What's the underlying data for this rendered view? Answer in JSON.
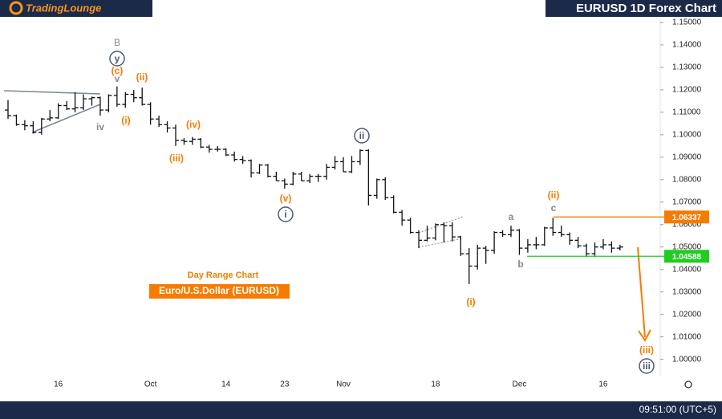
{
  "header": {
    "logo": "TradingLounge",
    "title": "EURUSD 1D Forex Chart",
    "time": "09:51:00 (UTC+5)"
  },
  "chart_data": {
    "type": "ohlc",
    "color": "#111111",
    "subtitle": "Day Range Chart",
    "instrument": "Euro/U.S.Dollar (EURUSD)",
    "categories": [
      null,
      null,
      null,
      null,
      null,
      null,
      "16",
      null,
      null,
      null,
      null,
      null,
      null,
      null,
      null,
      null,
      null,
      "Oct",
      null,
      null,
      null,
      null,
      null,
      null,
      null,
      null,
      "14",
      null,
      null,
      null,
      null,
      null,
      null,
      "23",
      null,
      null,
      null,
      null,
      null,
      null,
      "Nov",
      null,
      null,
      null,
      null,
      null,
      null,
      null,
      null,
      null,
      null,
      "18",
      null,
      null,
      null,
      null,
      null,
      null,
      null,
      null,
      null,
      "Dec",
      null,
      null,
      null,
      null,
      null,
      null,
      null,
      null,
      null,
      "16",
      null,
      null
    ],
    "open": [
      1.111,
      1.1085,
      1.1045,
      1.104,
      1.101,
      1.107,
      1.1075,
      1.113,
      1.1115,
      1.112,
      1.116,
      1.1165,
      1.111,
      1.1175,
      1.1135,
      1.118,
      1.1165,
      1.1135,
      1.107,
      1.1045,
      1.103,
      1.0975,
      1.097,
      1.098,
      1.0945,
      1.0935,
      1.0935,
      1.091,
      1.089,
      1.0885,
      1.083,
      1.0865,
      1.0815,
      1.0795,
      1.078,
      1.0825,
      1.0795,
      1.0815,
      1.0815,
      1.0855,
      1.088,
      1.0835,
      1.088,
      1.093,
      1.073,
      1.08,
      1.072,
      1.0655,
      1.062,
      1.0565,
      1.053,
      1.054,
      1.06,
      1.0595,
      1.0545,
      1.047,
      1.0415,
      1.0495,
      1.0485,
      1.0565,
      1.0555,
      1.0575,
      1.0495,
      1.051,
      1.051,
      1.0585,
      1.0565,
      1.0555,
      1.053,
      1.0505,
      1.047,
      1.05,
      1.051,
      1.0495
    ],
    "high": [
      1.1155,
      1.109,
      1.1065,
      1.106,
      1.1075,
      1.111,
      1.114,
      1.115,
      1.119,
      1.118,
      1.117,
      1.117,
      1.118,
      1.1215,
      1.119,
      1.12,
      1.121,
      1.1145,
      1.1085,
      1.106,
      1.1045,
      1.0985,
      1.099,
      1.0985,
      1.0955,
      1.095,
      1.094,
      1.0925,
      1.0905,
      1.089,
      1.087,
      1.087,
      1.0835,
      1.0805,
      1.0835,
      1.0835,
      1.0825,
      1.0825,
      1.087,
      1.0905,
      1.09,
      1.0905,
      1.0935,
      1.0935,
      1.0805,
      1.081,
      1.073,
      1.0665,
      1.063,
      1.0575,
      1.0595,
      1.0605,
      1.061,
      1.061,
      1.055,
      1.0495,
      1.051,
      1.0505,
      1.057,
      1.0575,
      1.0595,
      1.058,
      1.0535,
      1.0545,
      1.059,
      1.063,
      1.0595,
      1.0565,
      1.0545,
      1.0515,
      1.052,
      1.0535,
      1.0525,
      1.051
    ],
    "low": [
      1.107,
      1.104,
      1.102,
      1.1005,
      1.1,
      1.106,
      1.107,
      1.111,
      1.11,
      1.111,
      1.113,
      1.1085,
      1.11,
      1.1125,
      1.112,
      1.1145,
      1.113,
      1.1045,
      1.1035,
      1.101,
      1.095,
      1.0955,
      1.0955,
      1.094,
      1.092,
      1.0925,
      1.0905,
      1.088,
      1.087,
      1.081,
      1.0825,
      1.081,
      1.0795,
      1.076,
      1.0775,
      1.0795,
      1.0785,
      1.079,
      1.08,
      1.0845,
      1.0835,
      1.083,
      1.0865,
      1.0685,
      1.0715,
      1.071,
      1.065,
      1.0595,
      1.056,
      1.0495,
      1.0525,
      1.053,
      1.052,
      1.0525,
      1.046,
      1.0335,
      1.04,
      1.0425,
      1.047,
      1.0545,
      1.0545,
      1.0465,
      1.0475,
      1.049,
      1.0505,
      1.055,
      1.0545,
      1.051,
      1.0495,
      1.0455,
      1.0455,
      1.049,
      1.0475,
      1.0485
    ],
    "close": [
      1.1085,
      1.1045,
      1.104,
      1.101,
      1.107,
      1.1075,
      1.113,
      1.1115,
      1.112,
      1.116,
      1.1165,
      1.111,
      1.1175,
      1.1135,
      1.118,
      1.1165,
      1.1135,
      1.107,
      1.1045,
      1.103,
      1.0975,
      1.097,
      1.098,
      1.0945,
      1.0935,
      1.0935,
      1.091,
      1.089,
      1.0885,
      1.083,
      1.0865,
      1.0815,
      1.0795,
      1.078,
      1.0825,
      1.0795,
      1.0815,
      1.0815,
      1.0855,
      1.088,
      1.0835,
      1.088,
      1.093,
      1.073,
      1.08,
      1.072,
      1.0655,
      1.062,
      1.0565,
      1.053,
      1.054,
      1.06,
      1.0595,
      1.0545,
      1.047,
      1.0415,
      1.0495,
      1.0485,
      1.0565,
      1.0555,
      1.0575,
      1.0495,
      1.051,
      1.051,
      1.0585,
      1.0565,
      1.0555,
      1.053,
      1.0505,
      1.047,
      1.05,
      1.051,
      1.0495,
      1.05
    ],
    "ylim": [
      0.992,
      1.16
    ],
    "yticks": [
      {
        "value": 1.0,
        "label": "1.00000"
      },
      {
        "value": 1.01,
        "label": "1.01000"
      },
      {
        "value": 1.02,
        "label": "1.02000"
      },
      {
        "value": 1.03,
        "label": "1.03000"
      },
      {
        "value": 1.04,
        "label": "1.04000"
      },
      {
        "value": 1.05,
        "label": "1.05000"
      },
      {
        "value": 1.06,
        "label": "1.06000"
      },
      {
        "value": 1.07,
        "label": "1.07000"
      },
      {
        "value": 1.08,
        "label": "1.08000"
      },
      {
        "value": 1.09,
        "label": "1.09000"
      },
      {
        "value": 1.1,
        "label": "1.10000"
      },
      {
        "value": 1.11,
        "label": "1.11000"
      },
      {
        "value": 1.12,
        "label": "1.12000"
      },
      {
        "value": 1.13,
        "label": "1.13000"
      },
      {
        "value": 1.14,
        "label": "1.14000"
      },
      {
        "value": 1.15,
        "label": "1.15000"
      }
    ],
    "levels": [
      {
        "value": 1.06337,
        "color": "#f57c00"
      },
      {
        "value": 1.04588,
        "color": "#22cc22"
      }
    ],
    "annotations": [
      "B",
      "y",
      "v",
      "(c)",
      "(ii)",
      "(i)",
      "iv",
      "(iv)",
      "(iii)",
      "(v)",
      "i",
      "ii",
      "a",
      "c",
      "(ii)",
      "b",
      "(i)",
      "(iii)",
      "iii"
    ]
  }
}
